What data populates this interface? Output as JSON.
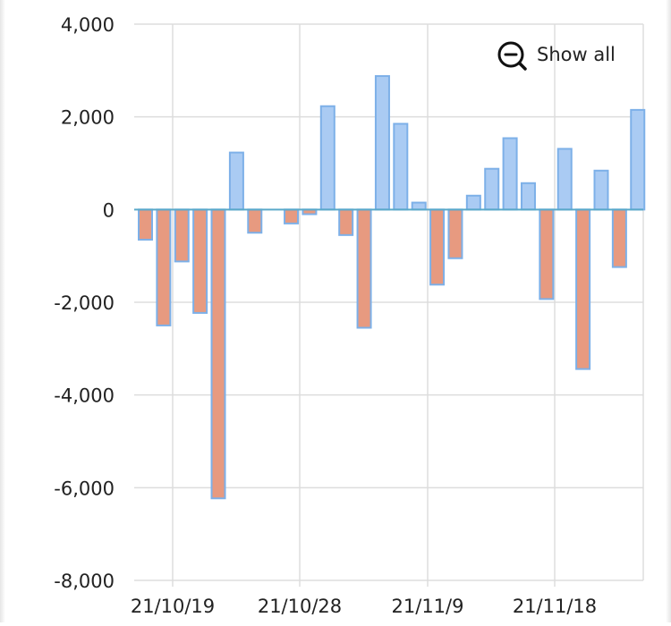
{
  "chart_data": {
    "type": "bar",
    "ylim": [
      -8000,
      4000
    ],
    "yticks": [
      4000,
      2000,
      0,
      -2000,
      -4000,
      -6000,
      -8000
    ],
    "ytick_labels": [
      "4,000",
      "2,000",
      "0",
      "-2,000",
      "-4,000",
      "-6,000",
      "-8,000"
    ],
    "xtick_labels": [
      "21/10/19",
      "21/10/28",
      "21/11/9",
      "21/11/18"
    ],
    "values": [
      -650,
      -2500,
      -1120,
      -2230,
      -6230,
      1230,
      -500,
      0,
      -300,
      -100,
      2230,
      -550,
      -2550,
      2880,
      1850,
      150,
      -1620,
      -1050,
      300,
      880,
      1540,
      570,
      -1930,
      1310,
      -3440,
      840,
      -1240,
      2150
    ],
    "grid": true,
    "colors": {
      "positive_fill": "#aacbf3",
      "positive_stroke": "#7db0e8",
      "negative_fill": "#e79a80",
      "negative_stroke": "#7db0e8",
      "zero_line": "#5aa9c9",
      "grid": "#dddddd"
    }
  },
  "controls": {
    "show_all_label": "Show all",
    "show_all_icon": "zoom-out-icon"
  }
}
